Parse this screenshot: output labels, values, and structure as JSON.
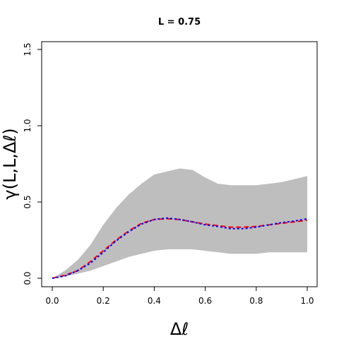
{
  "chart_data": {
    "type": "line",
    "title": "L = 0.75",
    "xlabel": "Δℓ",
    "ylabel": "γ(L,L,Δℓ)",
    "xlim": [
      0,
      1
    ],
    "ylim": [
      0,
      1.5
    ],
    "x_ticks": [
      "0.0",
      "0.2",
      "0.4",
      "0.6",
      "0.8",
      "1.0"
    ],
    "y_ticks": [
      "0.0",
      "0.5",
      "1.0",
      "1.5"
    ],
    "grid": false,
    "legend": "none",
    "band": {
      "x": [
        0.0,
        0.05,
        0.1,
        0.15,
        0.2,
        0.25,
        0.3,
        0.35,
        0.4,
        0.45,
        0.5,
        0.55,
        0.6,
        0.65,
        0.7,
        0.75,
        0.8,
        0.85,
        0.9,
        0.95,
        1.0
      ],
      "upper": [
        0.0,
        0.05,
        0.12,
        0.22,
        0.35,
        0.46,
        0.55,
        0.62,
        0.68,
        0.7,
        0.72,
        0.71,
        0.66,
        0.62,
        0.61,
        0.61,
        0.61,
        0.62,
        0.63,
        0.65,
        0.67
      ],
      "lower": [
        0.0,
        0.01,
        0.03,
        0.05,
        0.08,
        0.11,
        0.14,
        0.16,
        0.18,
        0.19,
        0.19,
        0.19,
        0.18,
        0.17,
        0.16,
        0.16,
        0.16,
        0.17,
        0.17,
        0.17,
        0.17
      ],
      "color": "#bebebe"
    },
    "series": [
      {
        "x": [
          0.0,
          0.05,
          0.1,
          0.15,
          0.2,
          0.25,
          0.3,
          0.35,
          0.4,
          0.45,
          0.5,
          0.55,
          0.6,
          0.65,
          0.7,
          0.75,
          0.8,
          0.85,
          0.9,
          0.95,
          1.0
        ],
        "values": [
          0.0,
          0.02,
          0.05,
          0.11,
          0.18,
          0.25,
          0.31,
          0.36,
          0.385,
          0.39,
          0.385,
          0.37,
          0.355,
          0.345,
          0.335,
          0.335,
          0.34,
          0.35,
          0.36,
          0.37,
          0.38
        ],
        "color": "#ff0000",
        "style": "dashed"
      },
      {
        "x": [
          0.0,
          0.05,
          0.1,
          0.15,
          0.2,
          0.25,
          0.3,
          0.35,
          0.4,
          0.45,
          0.5,
          0.55,
          0.6,
          0.65,
          0.7,
          0.75,
          0.8,
          0.85,
          0.9,
          0.95,
          1.0
        ],
        "values": [
          0.0,
          0.015,
          0.05,
          0.1,
          0.17,
          0.245,
          0.305,
          0.355,
          0.385,
          0.395,
          0.385,
          0.37,
          0.35,
          0.34,
          0.325,
          0.325,
          0.335,
          0.35,
          0.365,
          0.375,
          0.39
        ],
        "color": "#0000ff",
        "style": "dotted"
      }
    ]
  }
}
